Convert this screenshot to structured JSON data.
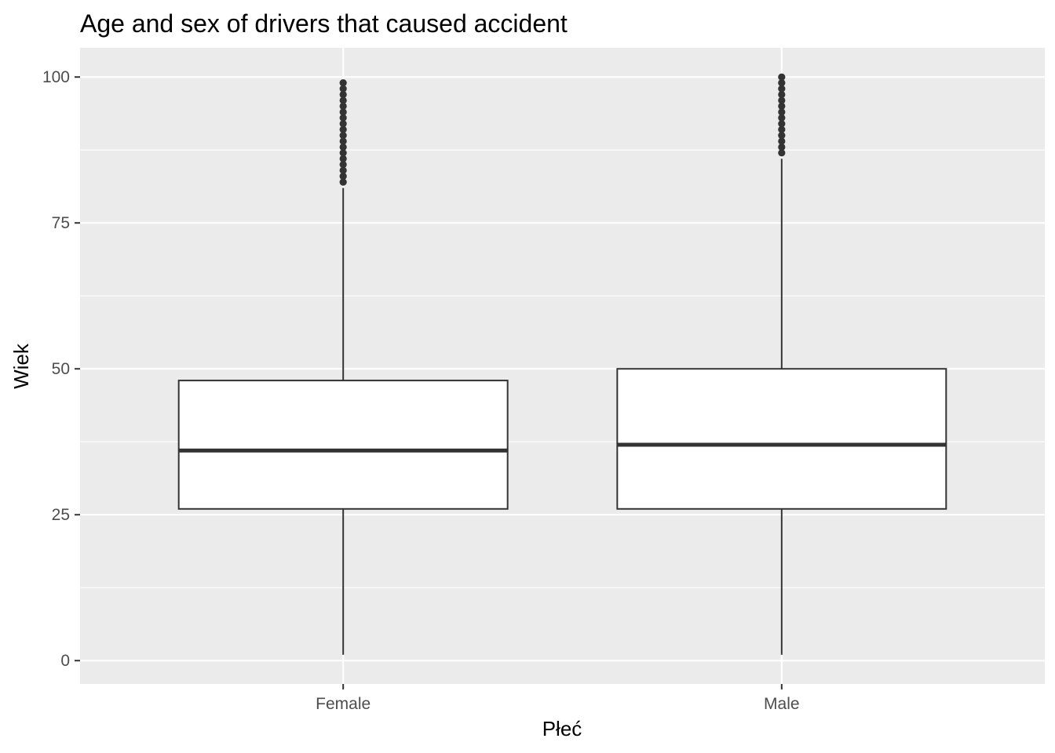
{
  "chart_data": {
    "type": "boxplot",
    "title": "Age and sex of drivers that caused accident",
    "xlabel": "Płeć",
    "ylabel": "Wiek",
    "ylim": [
      -4,
      105
    ],
    "yticks": [
      0,
      25,
      50,
      75,
      100
    ],
    "grid": true,
    "background": "#ebebeb",
    "gridColor": "#ffffff",
    "boxFill": "#ffffff",
    "lineColor": "#333333",
    "categories": [
      "Female",
      "Male"
    ],
    "boxes": [
      {
        "name": "Female",
        "whisker_low": 1,
        "q1": 26,
        "median": 36,
        "q3": 48,
        "whisker_high": 81,
        "outliers": [
          82,
          83,
          84,
          85,
          86,
          87,
          88,
          89,
          90,
          91,
          92,
          93,
          94,
          95,
          96,
          97,
          98,
          99
        ]
      },
      {
        "name": "Male",
        "whisker_low": 1,
        "q1": 26,
        "median": 37,
        "q3": 50,
        "whisker_high": 86,
        "outliers": [
          87,
          88,
          89,
          90,
          91,
          92,
          93,
          94,
          95,
          96,
          97,
          98,
          99,
          100
        ]
      }
    ]
  }
}
